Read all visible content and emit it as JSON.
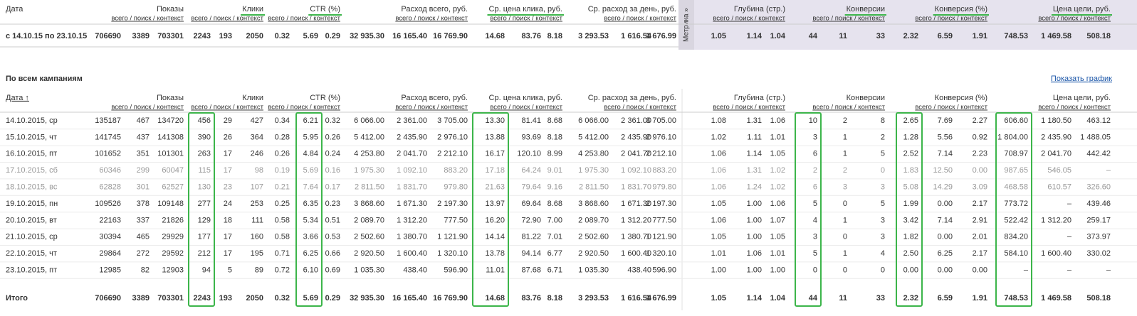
{
  "summary_table": {
    "date_header": "Дата",
    "groups": [
      "Показы",
      "Клики",
      "CTR (%)",
      "Расход всего, руб.",
      "Ср. цена клика, руб.",
      "Ср. расход за день, руб.",
      "Глубина (стр.)",
      "Конверсии",
      "Конверсия (%)",
      "Цена цели, руб."
    ],
    "subheader": "всего / поиск / контекст",
    "metrika": "Метрика »",
    "row": {
      "label": "с 14.10.15 по 23.10.15",
      "cells": [
        "706690",
        "3389",
        "703301",
        "2243",
        "193",
        "2050",
        "0.32",
        "5.69",
        "0.29",
        "32 935.30",
        "16 165.40",
        "16 769.90",
        "14.68",
        "83.76",
        "8.18",
        "3 293.53",
        "1 616.54",
        "1 676.99",
        "1.05",
        "1.14",
        "1.04",
        "44",
        "11",
        "33",
        "2.32",
        "6.59",
        "1.91",
        "748.53",
        "1 469.58",
        "508.18"
      ]
    }
  },
  "campaign_section": {
    "title": "По всем кампаниям",
    "link": "Показать график",
    "date_header": "Дата ↑",
    "groups": [
      "Показы",
      "Клики",
      "CTR (%)",
      "Расход всего, руб.",
      "Ср. цена клика, руб.",
      "Ср. расход за день, руб.",
      "Глубина (стр.)",
      "Конверсии",
      "Конверсия (%)",
      "Цена цели, руб."
    ],
    "subheader": "всего / поиск / контекст",
    "rows": [
      {
        "label": "14.10.2015, ср",
        "cells": [
          "135187",
          "467",
          "134720",
          "456",
          "29",
          "427",
          "0.34",
          "6.21",
          "0.32",
          "6 066.00",
          "2 361.00",
          "3 705.00",
          "13.30",
          "81.41",
          "8.68",
          "6 066.00",
          "2 361.00",
          "3 705.00",
          "1.08",
          "1.31",
          "1.06",
          "10",
          "2",
          "8",
          "2.65",
          "7.69",
          "2.27",
          "606.60",
          "1 180.50",
          "463.12"
        ]
      },
      {
        "label": "15.10.2015, чт",
        "cells": [
          "141745",
          "437",
          "141308",
          "390",
          "26",
          "364",
          "0.28",
          "5.95",
          "0.26",
          "5 412.00",
          "2 435.90",
          "2 976.10",
          "13.88",
          "93.69",
          "8.18",
          "5 412.00",
          "2 435.90",
          "2 976.10",
          "1.02",
          "1.11",
          "1.01",
          "3",
          "1",
          "2",
          "1.28",
          "5.56",
          "0.92",
          "1 804.00",
          "2 435.90",
          "1 488.05"
        ]
      },
      {
        "label": "16.10.2015, пт",
        "cells": [
          "101652",
          "351",
          "101301",
          "263",
          "17",
          "246",
          "0.26",
          "4.84",
          "0.24",
          "4 253.80",
          "2 041.70",
          "2 212.10",
          "16.17",
          "120.10",
          "8.99",
          "4 253.80",
          "2 041.70",
          "2 212.10",
          "1.06",
          "1.14",
          "1.05",
          "6",
          "1",
          "5",
          "2.52",
          "7.14",
          "2.23",
          "708.97",
          "2 041.70",
          "442.42"
        ]
      },
      {
        "label": "17.10.2015, сб",
        "muted": true,
        "cells": [
          "60346",
          "299",
          "60047",
          "115",
          "17",
          "98",
          "0.19",
          "5.69",
          "0.16",
          "1 975.30",
          "1 092.10",
          "883.20",
          "17.18",
          "64.24",
          "9.01",
          "1 975.30",
          "1 092.10",
          "883.20",
          "1.06",
          "1.31",
          "1.02",
          "2",
          "2",
          "0",
          "1.83",
          "12.50",
          "0.00",
          "987.65",
          "546.05",
          "–"
        ]
      },
      {
        "label": "18.10.2015, вс",
        "muted": true,
        "cells": [
          "62828",
          "301",
          "62527",
          "130",
          "23",
          "107",
          "0.21",
          "7.64",
          "0.17",
          "2 811.50",
          "1 831.70",
          "979.80",
          "21.63",
          "79.64",
          "9.16",
          "2 811.50",
          "1 831.70",
          "979.80",
          "1.06",
          "1.24",
          "1.02",
          "6",
          "3",
          "3",
          "5.08",
          "14.29",
          "3.09",
          "468.58",
          "610.57",
          "326.60"
        ]
      },
      {
        "label": "19.10.2015, пн",
        "cells": [
          "109526",
          "378",
          "109148",
          "277",
          "24",
          "253",
          "0.25",
          "6.35",
          "0.23",
          "3 868.60",
          "1 671.30",
          "2 197.30",
          "13.97",
          "69.64",
          "8.68",
          "3 868.60",
          "1 671.30",
          "2 197.30",
          "1.05",
          "1.00",
          "1.06",
          "5",
          "0",
          "5",
          "1.99",
          "0.00",
          "2.17",
          "773.72",
          "–",
          "439.46"
        ]
      },
      {
        "label": "20.10.2015, вт",
        "cells": [
          "22163",
          "337",
          "21826",
          "129",
          "18",
          "111",
          "0.58",
          "5.34",
          "0.51",
          "2 089.70",
          "1 312.20",
          "777.50",
          "16.20",
          "72.90",
          "7.00",
          "2 089.70",
          "1 312.20",
          "777.50",
          "1.06",
          "1.00",
          "1.07",
          "4",
          "1",
          "3",
          "3.42",
          "7.14",
          "2.91",
          "522.42",
          "1 312.20",
          "259.17"
        ]
      },
      {
        "label": "21.10.2015, ср",
        "cells": [
          "30394",
          "465",
          "29929",
          "177",
          "17",
          "160",
          "0.58",
          "3.66",
          "0.53",
          "2 502.60",
          "1 380.70",
          "1 121.90",
          "14.14",
          "81.22",
          "7.01",
          "2 502.60",
          "1 380.70",
          "1 121.90",
          "1.05",
          "1.00",
          "1.05",
          "3",
          "0",
          "3",
          "1.82",
          "0.00",
          "2.01",
          "834.20",
          "–",
          "373.97"
        ]
      },
      {
        "label": "22.10.2015, чт",
        "cells": [
          "29864",
          "272",
          "29592",
          "212",
          "17",
          "195",
          "0.71",
          "6.25",
          "0.66",
          "2 920.50",
          "1 600.40",
          "1 320.10",
          "13.78",
          "94.14",
          "6.77",
          "2 920.50",
          "1 600.40",
          "1 320.10",
          "1.01",
          "1.06",
          "1.01",
          "5",
          "1",
          "4",
          "2.50",
          "6.25",
          "2.17",
          "584.10",
          "1 600.40",
          "330.02"
        ]
      },
      {
        "label": "23.10.2015, пт",
        "cells": [
          "12985",
          "82",
          "12903",
          "94",
          "5",
          "89",
          "0.72",
          "6.10",
          "0.69",
          "1 035.30",
          "438.40",
          "596.90",
          "11.01",
          "87.68",
          "6.71",
          "1 035.30",
          "438.40",
          "596.90",
          "1.00",
          "1.00",
          "1.00",
          "0",
          "0",
          "0",
          "0.00",
          "0.00",
          "0.00",
          "–",
          "–",
          "–"
        ]
      }
    ],
    "total": {
      "label": "Итого",
      "cells": [
        "706690",
        "3389",
        "703301",
        "2243",
        "193",
        "2050",
        "0.32",
        "5.69",
        "0.29",
        "32 935.30",
        "16 165.40",
        "16 769.90",
        "14.68",
        "83.76",
        "8.18",
        "3 293.53",
        "1 616.54",
        "1 676.99",
        "1.05",
        "1.14",
        "1.04",
        "44",
        "11",
        "33",
        "2.32",
        "6.59",
        "1.91",
        "748.53",
        "1 469.58",
        "508.18"
      ]
    }
  }
}
